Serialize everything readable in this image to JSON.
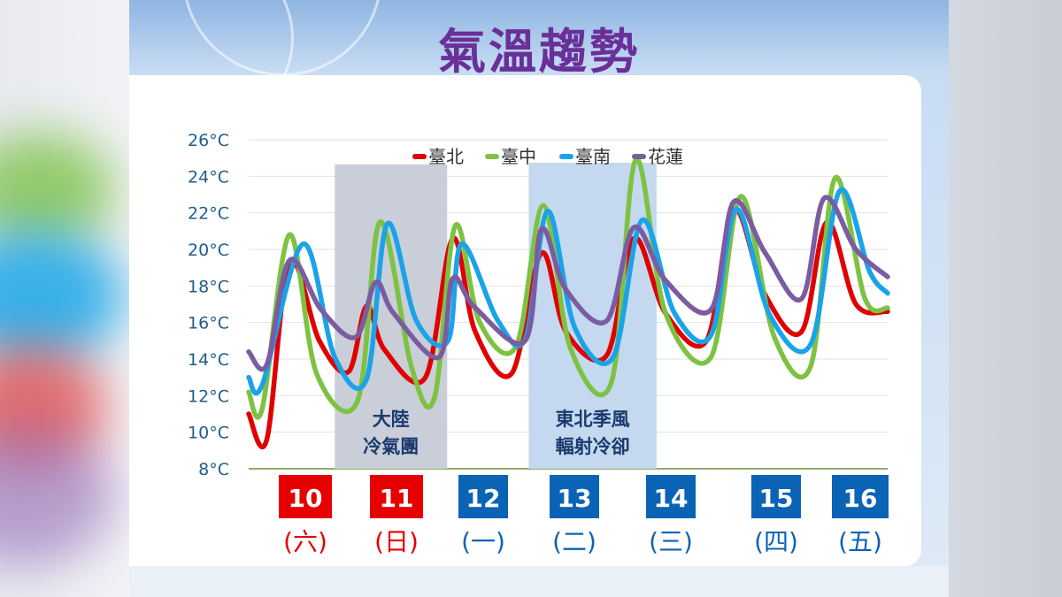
{
  "title": "氣溫趨勢",
  "chart_data": {
    "type": "line",
    "y_ticks": [
      "26°C",
      "24°C",
      "22°C",
      "20°C",
      "18°C",
      "16°C",
      "14°C",
      "12°C",
      "10°C",
      "8°C"
    ],
    "ylim": [
      8,
      26
    ],
    "x_days": [
      {
        "date": "10",
        "weekday": "(六)",
        "color": "#e60000"
      },
      {
        "date": "11",
        "weekday": "(日)",
        "color": "#e60000"
      },
      {
        "date": "12",
        "weekday": "(一)",
        "color": "#0b63b6"
      },
      {
        "date": "13",
        "weekday": "(二)",
        "color": "#0b63b6"
      },
      {
        "date": "14",
        "weekday": "(三)",
        "color": "#0b63b6"
      },
      {
        "date": "15",
        "weekday": "(四)",
        "color": "#0b63b6"
      },
      {
        "date": "16",
        "weekday": "(五)",
        "color": "#0b63b6"
      }
    ],
    "x_range": [
      0,
      7.05
    ],
    "series": [
      {
        "name": "臺北",
        "color": "#e00000",
        "points": [
          [
            0,
            11
          ],
          [
            0.2,
            9.6
          ],
          [
            0.45,
            19.3
          ],
          [
            0.78,
            15
          ],
          [
            1.1,
            13.3
          ],
          [
            1.3,
            16.9
          ],
          [
            1.5,
            14.5
          ],
          [
            1.95,
            13
          ],
          [
            2.25,
            20.6
          ],
          [
            2.5,
            15.5
          ],
          [
            2.9,
            13.2
          ],
          [
            3.23,
            19.8
          ],
          [
            3.5,
            15.5
          ],
          [
            3.95,
            14.2
          ],
          [
            4.25,
            20.6
          ],
          [
            4.6,
            16.5
          ],
          [
            5.05,
            15
          ],
          [
            5.35,
            22.2
          ],
          [
            5.7,
            17.5
          ],
          [
            6.1,
            15.5
          ],
          [
            6.38,
            21.5
          ],
          [
            6.7,
            17
          ],
          [
            7.05,
            16.6
          ]
        ]
      },
      {
        "name": "臺中",
        "color": "#7dc242",
        "points": [
          [
            0,
            12.2
          ],
          [
            0.15,
            11.3
          ],
          [
            0.45,
            20.8
          ],
          [
            0.75,
            13.2
          ],
          [
            1.2,
            11.7
          ],
          [
            1.45,
            21.5
          ],
          [
            1.8,
            13.5
          ],
          [
            2.05,
            11.9
          ],
          [
            2.28,
            21.3
          ],
          [
            2.55,
            16
          ],
          [
            2.95,
            14.7
          ],
          [
            3.25,
            22.4
          ],
          [
            3.55,
            14.6
          ],
          [
            4,
            12.7
          ],
          [
            4.27,
            24.9
          ],
          [
            4.6,
            16.5
          ],
          [
            5.1,
            14.1
          ],
          [
            5.43,
            22.9
          ],
          [
            5.8,
            15.2
          ],
          [
            6.2,
            13.6
          ],
          [
            6.47,
            23.9
          ],
          [
            6.8,
            17.3
          ],
          [
            7.05,
            16.8
          ]
        ]
      },
      {
        "name": "臺南",
        "color": "#1aa3e8",
        "points": [
          [
            0,
            13
          ],
          [
            0.15,
            12.6
          ],
          [
            0.6,
            20.3
          ],
          [
            0.95,
            14.1
          ],
          [
            1.3,
            12.9
          ],
          [
            1.53,
            21.4
          ],
          [
            1.85,
            16.1
          ],
          [
            2.2,
            15
          ],
          [
            2.35,
            20.3
          ],
          [
            2.75,
            16.1
          ],
          [
            3.05,
            15.1
          ],
          [
            3.3,
            22.1
          ],
          [
            3.6,
            15.7
          ],
          [
            4.02,
            14.1
          ],
          [
            4.34,
            21.6
          ],
          [
            4.7,
            16.5
          ],
          [
            5.1,
            15.3
          ],
          [
            5.38,
            22.2
          ],
          [
            5.75,
            16.4
          ],
          [
            6.2,
            14.8
          ],
          [
            6.52,
            23.2
          ],
          [
            6.85,
            18.8
          ],
          [
            7.05,
            17.6
          ]
        ]
      },
      {
        "name": "花蓮",
        "color": "#7b5ca3",
        "points": [
          [
            0,
            14.4
          ],
          [
            0.2,
            13.7
          ],
          [
            0.45,
            19.4
          ],
          [
            0.8,
            16.7
          ],
          [
            1.18,
            15.2
          ],
          [
            1.4,
            18.2
          ],
          [
            1.6,
            16.5
          ],
          [
            2.1,
            14.1
          ],
          [
            2.25,
            18.4
          ],
          [
            2.5,
            16.8
          ],
          [
            3.05,
            15
          ],
          [
            3.23,
            21.1
          ],
          [
            3.5,
            17.8
          ],
          [
            3.95,
            16.1
          ],
          [
            4.25,
            21.2
          ],
          [
            4.6,
            18.3
          ],
          [
            5.1,
            16.7
          ],
          [
            5.35,
            22.6
          ],
          [
            5.7,
            19.8
          ],
          [
            6.1,
            17.3
          ],
          [
            6.35,
            22.8
          ],
          [
            6.7,
            20
          ],
          [
            7.05,
            18.5
          ]
        ]
      }
    ],
    "annotations": [
      {
        "lines": [
          "大陸",
          "冷氣團"
        ],
        "x_range": [
          0.95,
          2.19
        ]
      },
      {
        "lines": [
          "東北季風",
          "輻射冷卻"
        ],
        "x_range": [
          3.09,
          4.5
        ]
      }
    ]
  }
}
